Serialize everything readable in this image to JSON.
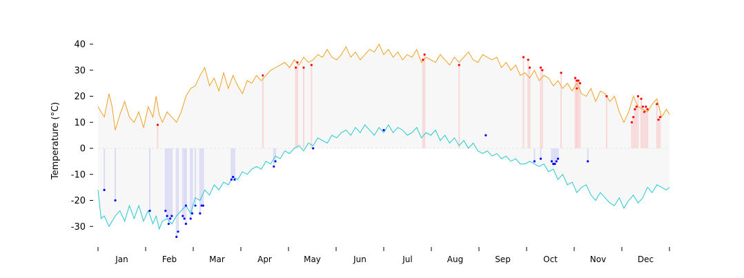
{
  "chart_data": {
    "type": "line",
    "title": "",
    "xlabel": "",
    "ylabel": "Temperature (°C)",
    "ylim": [
      -38,
      45
    ],
    "yticks": [
      40,
      30,
      20,
      10,
      0,
      -10,
      -20,
      -30
    ],
    "grid": false,
    "months": [
      "Jan",
      "Feb",
      "Mar",
      "Apr",
      "May",
      "Jun",
      "Jul",
      "Aug",
      "Sep",
      "Oct",
      "Nov",
      "Dec"
    ],
    "series": [
      {
        "color": "#f0a020",
        "day": [
          1,
          3,
          5,
          8,
          10,
          12,
          15,
          18,
          21,
          24,
          27,
          30,
          33,
          36,
          38,
          40,
          42,
          45,
          48,
          51,
          54,
          57,
          60,
          63,
          66,
          69,
          72,
          75,
          78,
          81,
          84,
          87,
          90,
          93,
          96,
          99,
          102,
          105,
          108,
          111,
          114,
          117,
          120,
          123,
          126,
          129,
          132,
          135,
          138,
          141,
          144,
          147,
          150,
          153,
          156,
          159,
          162,
          165,
          168,
          171,
          174,
          177,
          180,
          183,
          186,
          189,
          192,
          195,
          198,
          201,
          204,
          207,
          210,
          213,
          216,
          219,
          222,
          225,
          228,
          231,
          234,
          237,
          240,
          243,
          246,
          249,
          252,
          255,
          258,
          261,
          264,
          267,
          270,
          273,
          276,
          279,
          282,
          285,
          288,
          291,
          294,
          297,
          300,
          303,
          306,
          309,
          312,
          315,
          318,
          321,
          324,
          327,
          330,
          333,
          336,
          339,
          342,
          345,
          348,
          351,
          354,
          357,
          360,
          363,
          365
        ],
        "values": [
          16,
          14,
          12,
          21,
          16,
          7,
          13,
          18,
          12,
          10,
          14,
          8,
          16,
          12,
          20,
          13,
          10,
          14,
          12,
          10,
          14,
          20,
          23,
          24,
          28,
          31,
          24,
          27,
          22,
          29,
          23,
          28,
          24,
          21,
          26,
          25,
          28,
          26,
          28,
          30,
          31,
          32,
          33,
          31,
          34,
          32,
          35,
          33,
          34,
          36,
          35,
          38,
          35,
          34,
          36,
          39,
          35,
          37,
          34,
          36,
          38,
          37,
          40,
          36,
          38,
          35,
          37,
          34,
          36,
          35,
          38,
          33,
          35,
          34,
          33,
          36,
          34,
          32,
          35,
          33,
          35,
          37,
          34,
          33,
          36,
          35,
          34,
          35,
          31,
          33,
          30,
          32,
          28,
          29,
          27,
          30,
          26,
          28,
          27,
          24,
          26,
          23,
          25,
          22,
          25,
          21,
          20,
          23,
          18,
          22,
          21,
          18,
          20,
          14,
          10,
          14,
          20,
          16,
          15,
          14,
          17,
          19,
          12,
          15,
          13
        ]
      },
      {
        "color": "#22c8d0",
        "day": [
          1,
          3,
          5,
          8,
          10,
          12,
          15,
          18,
          21,
          24,
          27,
          30,
          33,
          36,
          38,
          40,
          42,
          45,
          48,
          51,
          54,
          57,
          60,
          63,
          66,
          69,
          72,
          75,
          78,
          81,
          84,
          87,
          90,
          93,
          96,
          99,
          102,
          105,
          108,
          111,
          114,
          117,
          120,
          123,
          126,
          129,
          132,
          135,
          138,
          141,
          144,
          147,
          150,
          153,
          156,
          159,
          162,
          165,
          168,
          171,
          174,
          177,
          180,
          183,
          186,
          189,
          192,
          195,
          198,
          201,
          204,
          207,
          210,
          213,
          216,
          219,
          222,
          225,
          228,
          231,
          234,
          237,
          240,
          243,
          246,
          249,
          252,
          255,
          258,
          261,
          264,
          267,
          270,
          273,
          276,
          279,
          282,
          285,
          288,
          291,
          294,
          297,
          300,
          303,
          306,
          309,
          312,
          315,
          318,
          321,
          324,
          327,
          330,
          333,
          336,
          339,
          342,
          345,
          348,
          351,
          354,
          357,
          360,
          363,
          365
        ],
        "values": [
          -16,
          -27,
          -26,
          -30,
          -28,
          -26,
          -24,
          -28,
          -22,
          -27,
          -22,
          -28,
          -24,
          -29,
          -26,
          -31,
          -28,
          -27,
          -29,
          -26,
          -24,
          -22,
          -25,
          -19,
          -20,
          -16,
          -18,
          -14,
          -16,
          -13,
          -14,
          -11,
          -12,
          -9,
          -10,
          -8,
          -7,
          -8,
          -5,
          -6,
          -3,
          -4,
          -1,
          -2,
          0,
          1,
          -1,
          2,
          1,
          4,
          3,
          2,
          5,
          4,
          6,
          7,
          5,
          8,
          6,
          9,
          7,
          5,
          8,
          6,
          9,
          6,
          8,
          7,
          5,
          6,
          8,
          4,
          6,
          5,
          7,
          3,
          5,
          2,
          4,
          1,
          3,
          0,
          2,
          -1,
          -2,
          -1,
          -3,
          -2,
          -4,
          -3,
          -5,
          -4,
          -6,
          -6,
          -5,
          -6,
          -7,
          -6,
          -9,
          -8,
          -12,
          -10,
          -14,
          -13,
          -17,
          -15,
          -14,
          -18,
          -20,
          -17,
          -19,
          -21,
          -22,
          -19,
          -23,
          -20,
          -18,
          -21,
          -19,
          -15,
          -17,
          -14,
          -15,
          -16,
          -15
        ]
      },
      {
        "color": "#ff0000",
        "kind": "points",
        "day": [
          39,
          106,
          127,
          128,
          132,
          137,
          208,
          209,
          231,
          272,
          275,
          276,
          283,
          284,
          296,
          305,
          306,
          306,
          307,
          308,
          325,
          341,
          342,
          343,
          344,
          345,
          347,
          348,
          349,
          350,
          351,
          357,
          358,
          359
        ],
        "values": [
          9,
          28,
          31,
          33,
          31,
          32,
          34,
          36,
          32,
          35,
          34,
          31,
          31,
          30,
          29,
          27,
          23,
          26,
          26,
          25,
          20,
          10,
          12,
          15,
          16,
          20,
          19,
          16,
          14,
          16,
          15,
          17,
          11,
          12
        ]
      },
      {
        "color": "#0000ff",
        "kind": "points",
        "day": [
          5,
          12,
          34,
          44,
          45,
          46,
          47,
          48,
          51,
          52,
          55,
          56,
          57,
          57,
          60,
          61,
          63,
          66,
          67,
          68,
          86,
          87,
          88,
          113,
          114,
          138,
          183,
          248,
          279,
          283,
          290,
          291,
          292,
          293,
          294,
          313
        ],
        "values": [
          -16,
          -20,
          -24,
          -24,
          -26,
          -29,
          -27,
          -26,
          -34,
          -32,
          -26,
          -27,
          -22,
          -29,
          -27,
          -25,
          -22,
          -25,
          -22,
          -22,
          -12,
          -11,
          -12,
          -7,
          -5,
          0,
          7,
          5,
          -5,
          -4,
          -5,
          -6,
          -6,
          -5,
          -4,
          -5
        ]
      }
    ]
  }
}
